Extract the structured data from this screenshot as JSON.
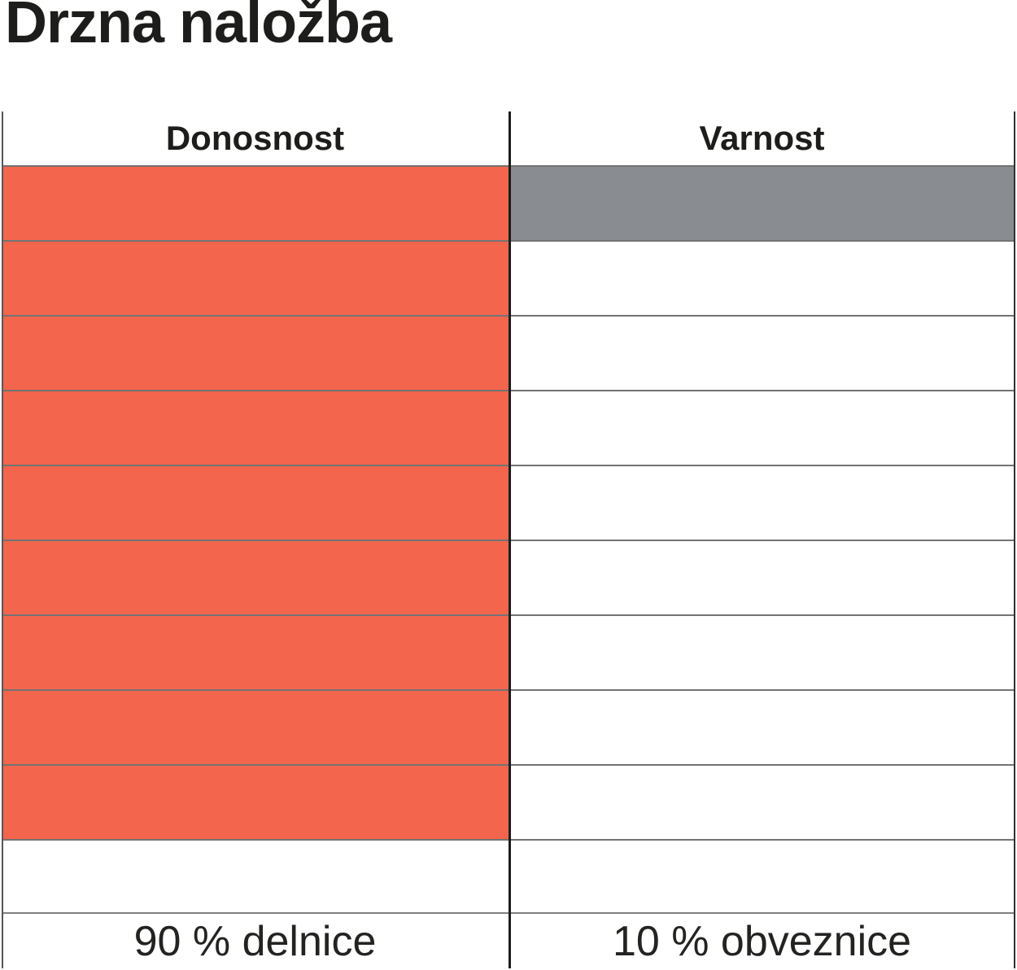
{
  "title": "Drzna naložba",
  "chart_data": {
    "type": "table",
    "title": "Drzna naložba",
    "description_layout": "two-column rating grid, cells filled from top",
    "total_rows": 10,
    "columns": [
      {
        "header": "Donosnost",
        "footer": "90 % delnice",
        "filled_cells": 9,
        "fill_color": "#F3654C"
      },
      {
        "header": "Varnost",
        "footer": "10 % obveznice",
        "filled_cells": 1,
        "fill_color": "#898C90"
      }
    ],
    "colors": {
      "grid_line": "#3a3a3a",
      "text": "#1d1d1b",
      "background": "#ffffff"
    }
  }
}
